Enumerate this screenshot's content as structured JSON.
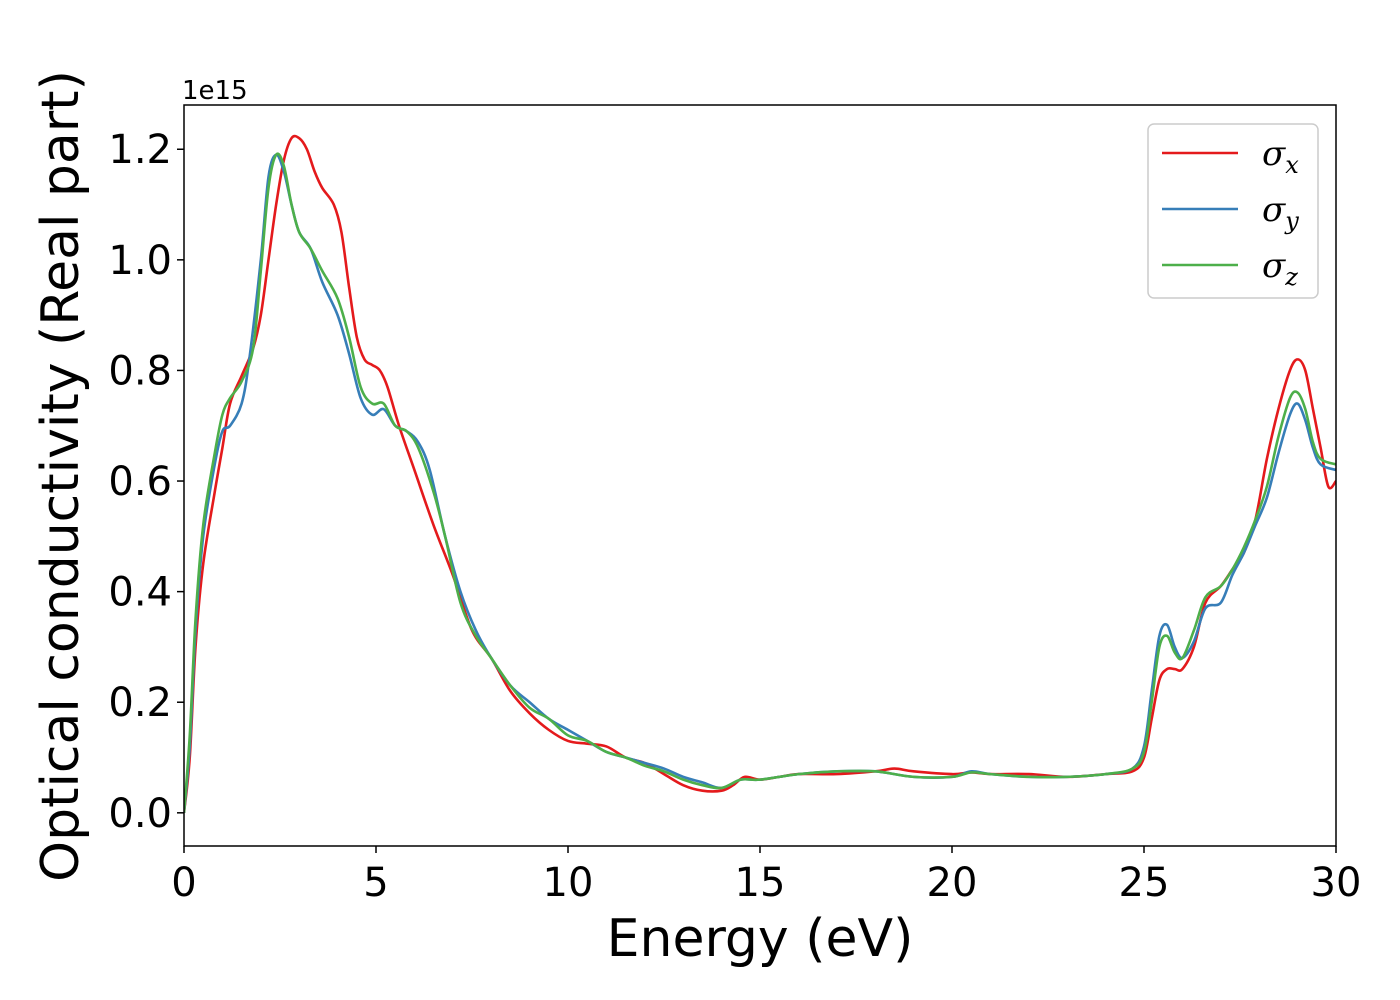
{
  "chart_data": {
    "type": "line",
    "xlabel": "Energy (eV)",
    "ylabel": "Optical conductivity (Real part)",
    "y_offset_text": "1e15",
    "xlim": [
      0,
      30
    ],
    "ylim": [
      -0.06,
      1.28
    ],
    "xticks": [
      0,
      5,
      10,
      15,
      20,
      25,
      30
    ],
    "yticks": [
      0.0,
      0.2,
      0.4,
      0.6,
      0.8,
      1.0,
      1.2
    ],
    "xtick_labels": [
      "0",
      "5",
      "10",
      "15",
      "20",
      "25",
      "30"
    ],
    "ytick_labels": [
      "0.0",
      "0.2",
      "0.4",
      "0.6",
      "0.8",
      "1.0",
      "1.2"
    ],
    "grid": false,
    "legend_position": "top-right",
    "series": [
      {
        "name": "σ",
        "subscript": "x",
        "color": "#e41a1c",
        "points": [
          [
            0,
            0.0
          ],
          [
            0.15,
            0.1
          ],
          [
            0.3,
            0.3
          ],
          [
            0.5,
            0.45
          ],
          [
            0.8,
            0.58
          ],
          [
            1.0,
            0.66
          ],
          [
            1.2,
            0.74
          ],
          [
            1.5,
            0.79
          ],
          [
            1.8,
            0.84
          ],
          [
            2.0,
            0.9
          ],
          [
            2.2,
            1.0
          ],
          [
            2.4,
            1.1
          ],
          [
            2.6,
            1.18
          ],
          [
            2.8,
            1.22
          ],
          [
            3.0,
            1.22
          ],
          [
            3.2,
            1.2
          ],
          [
            3.4,
            1.16
          ],
          [
            3.6,
            1.13
          ],
          [
            3.9,
            1.1
          ],
          [
            4.1,
            1.05
          ],
          [
            4.3,
            0.95
          ],
          [
            4.5,
            0.86
          ],
          [
            4.7,
            0.82
          ],
          [
            4.9,
            0.81
          ],
          [
            5.1,
            0.8
          ],
          [
            5.3,
            0.77
          ],
          [
            5.6,
            0.7
          ],
          [
            6.0,
            0.62
          ],
          [
            6.5,
            0.52
          ],
          [
            7.0,
            0.43
          ],
          [
            7.5,
            0.33
          ],
          [
            8.0,
            0.28
          ],
          [
            8.5,
            0.22
          ],
          [
            9.0,
            0.18
          ],
          [
            9.5,
            0.15
          ],
          [
            10.0,
            0.13
          ],
          [
            10.5,
            0.125
          ],
          [
            11.0,
            0.12
          ],
          [
            11.5,
            0.1
          ],
          [
            12.0,
            0.09
          ],
          [
            12.5,
            0.07
          ],
          [
            13.0,
            0.05
          ],
          [
            13.5,
            0.04
          ],
          [
            14.0,
            0.04
          ],
          [
            14.3,
            0.05
          ],
          [
            14.6,
            0.065
          ],
          [
            15.0,
            0.06
          ],
          [
            15.5,
            0.065
          ],
          [
            16.0,
            0.07
          ],
          [
            17.0,
            0.07
          ],
          [
            18.0,
            0.075
          ],
          [
            18.5,
            0.08
          ],
          [
            19.0,
            0.075
          ],
          [
            20.0,
            0.07
          ],
          [
            20.5,
            0.073
          ],
          [
            21.0,
            0.07
          ],
          [
            22.0,
            0.07
          ],
          [
            23.0,
            0.065
          ],
          [
            24.0,
            0.07
          ],
          [
            24.7,
            0.075
          ],
          [
            25.0,
            0.1
          ],
          [
            25.2,
            0.17
          ],
          [
            25.4,
            0.24
          ],
          [
            25.6,
            0.26
          ],
          [
            25.8,
            0.26
          ],
          [
            26.0,
            0.26
          ],
          [
            26.3,
            0.3
          ],
          [
            26.6,
            0.38
          ],
          [
            27.0,
            0.41
          ],
          [
            27.3,
            0.44
          ],
          [
            27.6,
            0.47
          ],
          [
            27.9,
            0.53
          ],
          [
            28.2,
            0.64
          ],
          [
            28.5,
            0.73
          ],
          [
            28.8,
            0.8
          ],
          [
            29.0,
            0.82
          ],
          [
            29.2,
            0.8
          ],
          [
            29.4,
            0.73
          ],
          [
            29.6,
            0.66
          ],
          [
            29.8,
            0.59
          ],
          [
            30.0,
            0.6
          ]
        ]
      },
      {
        "name": "σ",
        "subscript": "y",
        "color": "#377eb8",
        "points": [
          [
            0,
            0.0
          ],
          [
            0.15,
            0.12
          ],
          [
            0.3,
            0.33
          ],
          [
            0.5,
            0.5
          ],
          [
            0.8,
            0.63
          ],
          [
            1.0,
            0.69
          ],
          [
            1.2,
            0.7
          ],
          [
            1.5,
            0.74
          ],
          [
            1.7,
            0.82
          ],
          [
            2.0,
            1.0
          ],
          [
            2.2,
            1.15
          ],
          [
            2.4,
            1.19
          ],
          [
            2.6,
            1.16
          ],
          [
            2.8,
            1.1
          ],
          [
            3.0,
            1.05
          ],
          [
            3.3,
            1.02
          ],
          [
            3.6,
            0.96
          ],
          [
            4.0,
            0.9
          ],
          [
            4.3,
            0.83
          ],
          [
            4.6,
            0.75
          ],
          [
            4.9,
            0.72
          ],
          [
            5.2,
            0.73
          ],
          [
            5.5,
            0.7
          ],
          [
            5.8,
            0.69
          ],
          [
            6.1,
            0.67
          ],
          [
            6.4,
            0.62
          ],
          [
            6.8,
            0.5
          ],
          [
            7.2,
            0.4
          ],
          [
            7.6,
            0.33
          ],
          [
            8.0,
            0.28
          ],
          [
            8.5,
            0.23
          ],
          [
            9.0,
            0.2
          ],
          [
            9.5,
            0.17
          ],
          [
            10.0,
            0.15
          ],
          [
            10.5,
            0.13
          ],
          [
            11.0,
            0.11
          ],
          [
            11.5,
            0.1
          ],
          [
            12.0,
            0.09
          ],
          [
            12.5,
            0.08
          ],
          [
            13.0,
            0.065
          ],
          [
            13.5,
            0.055
          ],
          [
            14.0,
            0.045
          ],
          [
            14.5,
            0.06
          ],
          [
            15.0,
            0.06
          ],
          [
            16.0,
            0.07
          ],
          [
            17.0,
            0.075
          ],
          [
            18.0,
            0.075
          ],
          [
            19.0,
            0.065
          ],
          [
            20.0,
            0.065
          ],
          [
            20.5,
            0.075
          ],
          [
            21.0,
            0.07
          ],
          [
            22.0,
            0.065
          ],
          [
            23.0,
            0.065
          ],
          [
            24.0,
            0.07
          ],
          [
            24.7,
            0.08
          ],
          [
            25.0,
            0.12
          ],
          [
            25.2,
            0.22
          ],
          [
            25.4,
            0.32
          ],
          [
            25.6,
            0.34
          ],
          [
            25.8,
            0.3
          ],
          [
            26.0,
            0.28
          ],
          [
            26.3,
            0.31
          ],
          [
            26.6,
            0.37
          ],
          [
            27.0,
            0.38
          ],
          [
            27.3,
            0.43
          ],
          [
            27.6,
            0.47
          ],
          [
            27.9,
            0.52
          ],
          [
            28.2,
            0.57
          ],
          [
            28.5,
            0.65
          ],
          [
            28.8,
            0.72
          ],
          [
            29.0,
            0.74
          ],
          [
            29.2,
            0.71
          ],
          [
            29.4,
            0.66
          ],
          [
            29.6,
            0.63
          ],
          [
            30.0,
            0.62
          ]
        ]
      },
      {
        "name": "σ",
        "subscript": "z",
        "color": "#4daf4a",
        "points": [
          [
            0,
            0.0
          ],
          [
            0.15,
            0.14
          ],
          [
            0.3,
            0.35
          ],
          [
            0.5,
            0.52
          ],
          [
            0.8,
            0.65
          ],
          [
            1.0,
            0.72
          ],
          [
            1.2,
            0.75
          ],
          [
            1.5,
            0.78
          ],
          [
            1.8,
            0.84
          ],
          [
            2.0,
            0.98
          ],
          [
            2.2,
            1.13
          ],
          [
            2.4,
            1.19
          ],
          [
            2.6,
            1.17
          ],
          [
            2.8,
            1.1
          ],
          [
            3.0,
            1.05
          ],
          [
            3.3,
            1.02
          ],
          [
            3.6,
            0.98
          ],
          [
            4.0,
            0.93
          ],
          [
            4.3,
            0.86
          ],
          [
            4.6,
            0.77
          ],
          [
            4.9,
            0.74
          ],
          [
            5.2,
            0.74
          ],
          [
            5.5,
            0.7
          ],
          [
            5.8,
            0.69
          ],
          [
            6.1,
            0.66
          ],
          [
            6.5,
            0.58
          ],
          [
            6.8,
            0.5
          ],
          [
            7.2,
            0.38
          ],
          [
            7.6,
            0.32
          ],
          [
            8.0,
            0.28
          ],
          [
            8.5,
            0.23
          ],
          [
            9.0,
            0.19
          ],
          [
            9.5,
            0.17
          ],
          [
            10.0,
            0.14
          ],
          [
            10.5,
            0.13
          ],
          [
            11.0,
            0.11
          ],
          [
            11.5,
            0.1
          ],
          [
            12.0,
            0.085
          ],
          [
            12.5,
            0.075
          ],
          [
            13.0,
            0.06
          ],
          [
            13.5,
            0.05
          ],
          [
            14.0,
            0.045
          ],
          [
            14.5,
            0.06
          ],
          [
            15.0,
            0.06
          ],
          [
            16.0,
            0.07
          ],
          [
            17.0,
            0.075
          ],
          [
            18.0,
            0.075
          ],
          [
            19.0,
            0.065
          ],
          [
            20.0,
            0.065
          ],
          [
            20.5,
            0.073
          ],
          [
            21.0,
            0.07
          ],
          [
            22.0,
            0.065
          ],
          [
            23.0,
            0.065
          ],
          [
            24.0,
            0.07
          ],
          [
            24.7,
            0.08
          ],
          [
            25.0,
            0.11
          ],
          [
            25.2,
            0.2
          ],
          [
            25.4,
            0.3
          ],
          [
            25.6,
            0.32
          ],
          [
            25.8,
            0.29
          ],
          [
            26.0,
            0.28
          ],
          [
            26.3,
            0.33
          ],
          [
            26.6,
            0.39
          ],
          [
            27.0,
            0.41
          ],
          [
            27.3,
            0.44
          ],
          [
            27.6,
            0.48
          ],
          [
            27.9,
            0.53
          ],
          [
            28.2,
            0.59
          ],
          [
            28.5,
            0.68
          ],
          [
            28.8,
            0.75
          ],
          [
            29.0,
            0.76
          ],
          [
            29.2,
            0.73
          ],
          [
            29.4,
            0.67
          ],
          [
            29.6,
            0.64
          ],
          [
            30.0,
            0.63
          ]
        ]
      }
    ]
  }
}
